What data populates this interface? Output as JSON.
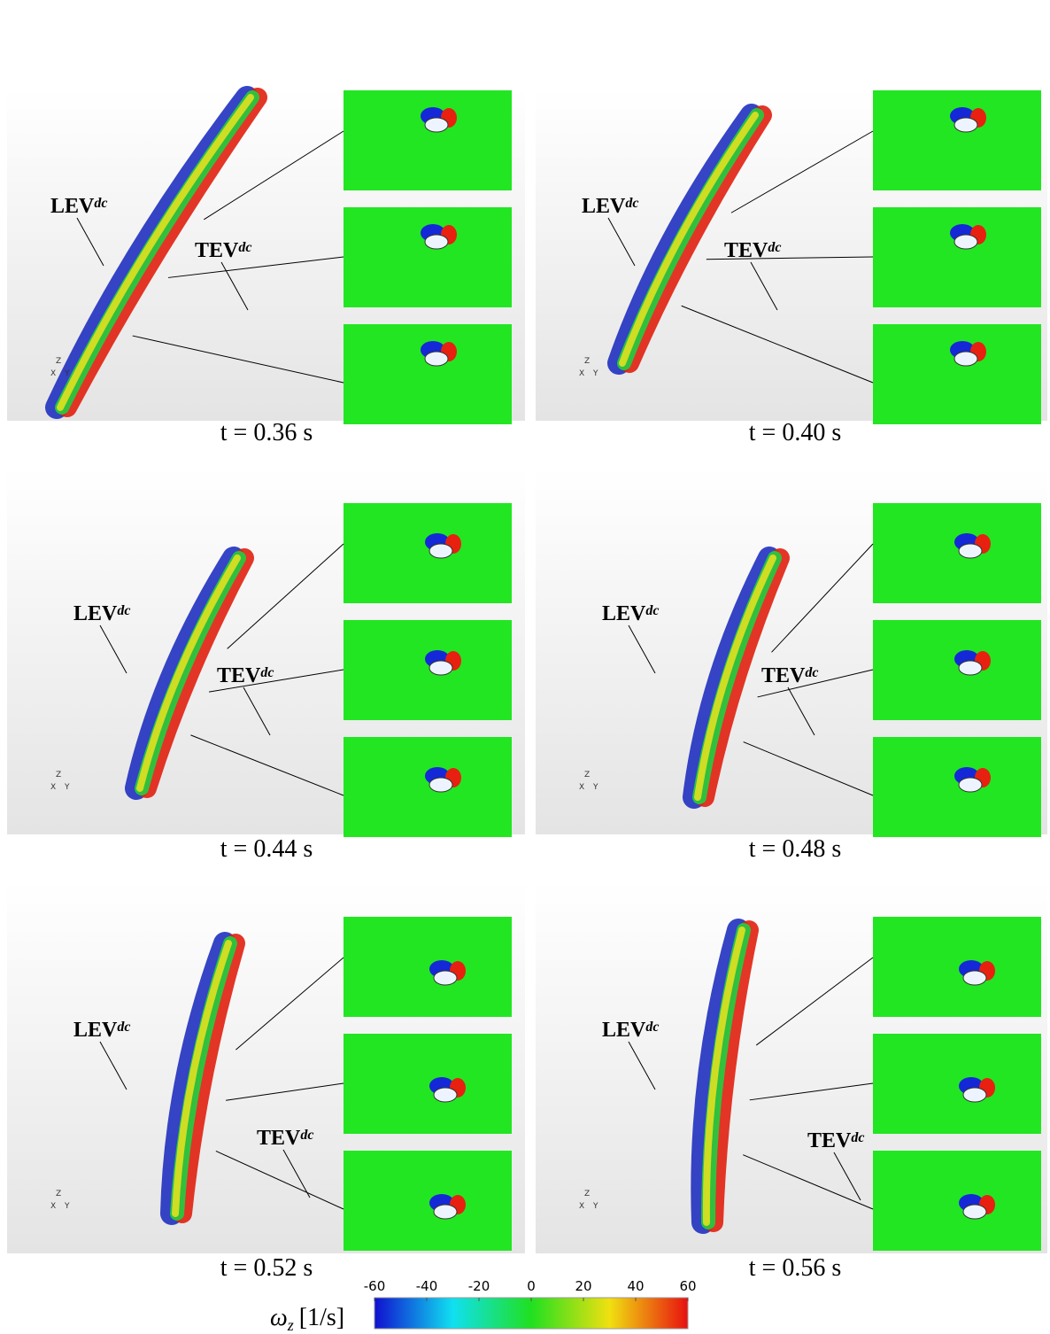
{
  "panels": [
    {
      "time": "t = 0.36 s",
      "lev": "LEV",
      "lev_sup": "dc",
      "tev": "TEV",
      "tev_sup": "dc"
    },
    {
      "time": "t = 0.40 s",
      "lev": "LEV",
      "lev_sup": "dc",
      "tev": "TEV",
      "tev_sup": "dc"
    },
    {
      "time": "t = 0.44 s",
      "lev": "LEV",
      "lev_sup": "dc",
      "tev": "TEV",
      "tev_sup": "dc"
    },
    {
      "time": "t = 0.48 s",
      "lev": "LEV",
      "lev_sup": "dc",
      "tev": "TEV",
      "tev_sup": "dc"
    },
    {
      "time": "t = 0.52 s",
      "lev": "LEV",
      "lev_sup": "dc",
      "tev": "TEV",
      "tev_sup": "dc"
    },
    {
      "time": "t = 0.56 s",
      "lev": "LEV",
      "lev_sup": "dc",
      "tev": "TEV",
      "tev_sup": "dc"
    }
  ],
  "axes_triad": [
    "Z",
    "X",
    "Y"
  ],
  "colorbar": {
    "symbol": "ω",
    "subscript": "z",
    "unit": "[1/s]",
    "lim": [
      -60,
      60
    ],
    "ticks": [
      -60,
      -40,
      -20,
      0,
      20,
      40,
      60
    ]
  }
}
